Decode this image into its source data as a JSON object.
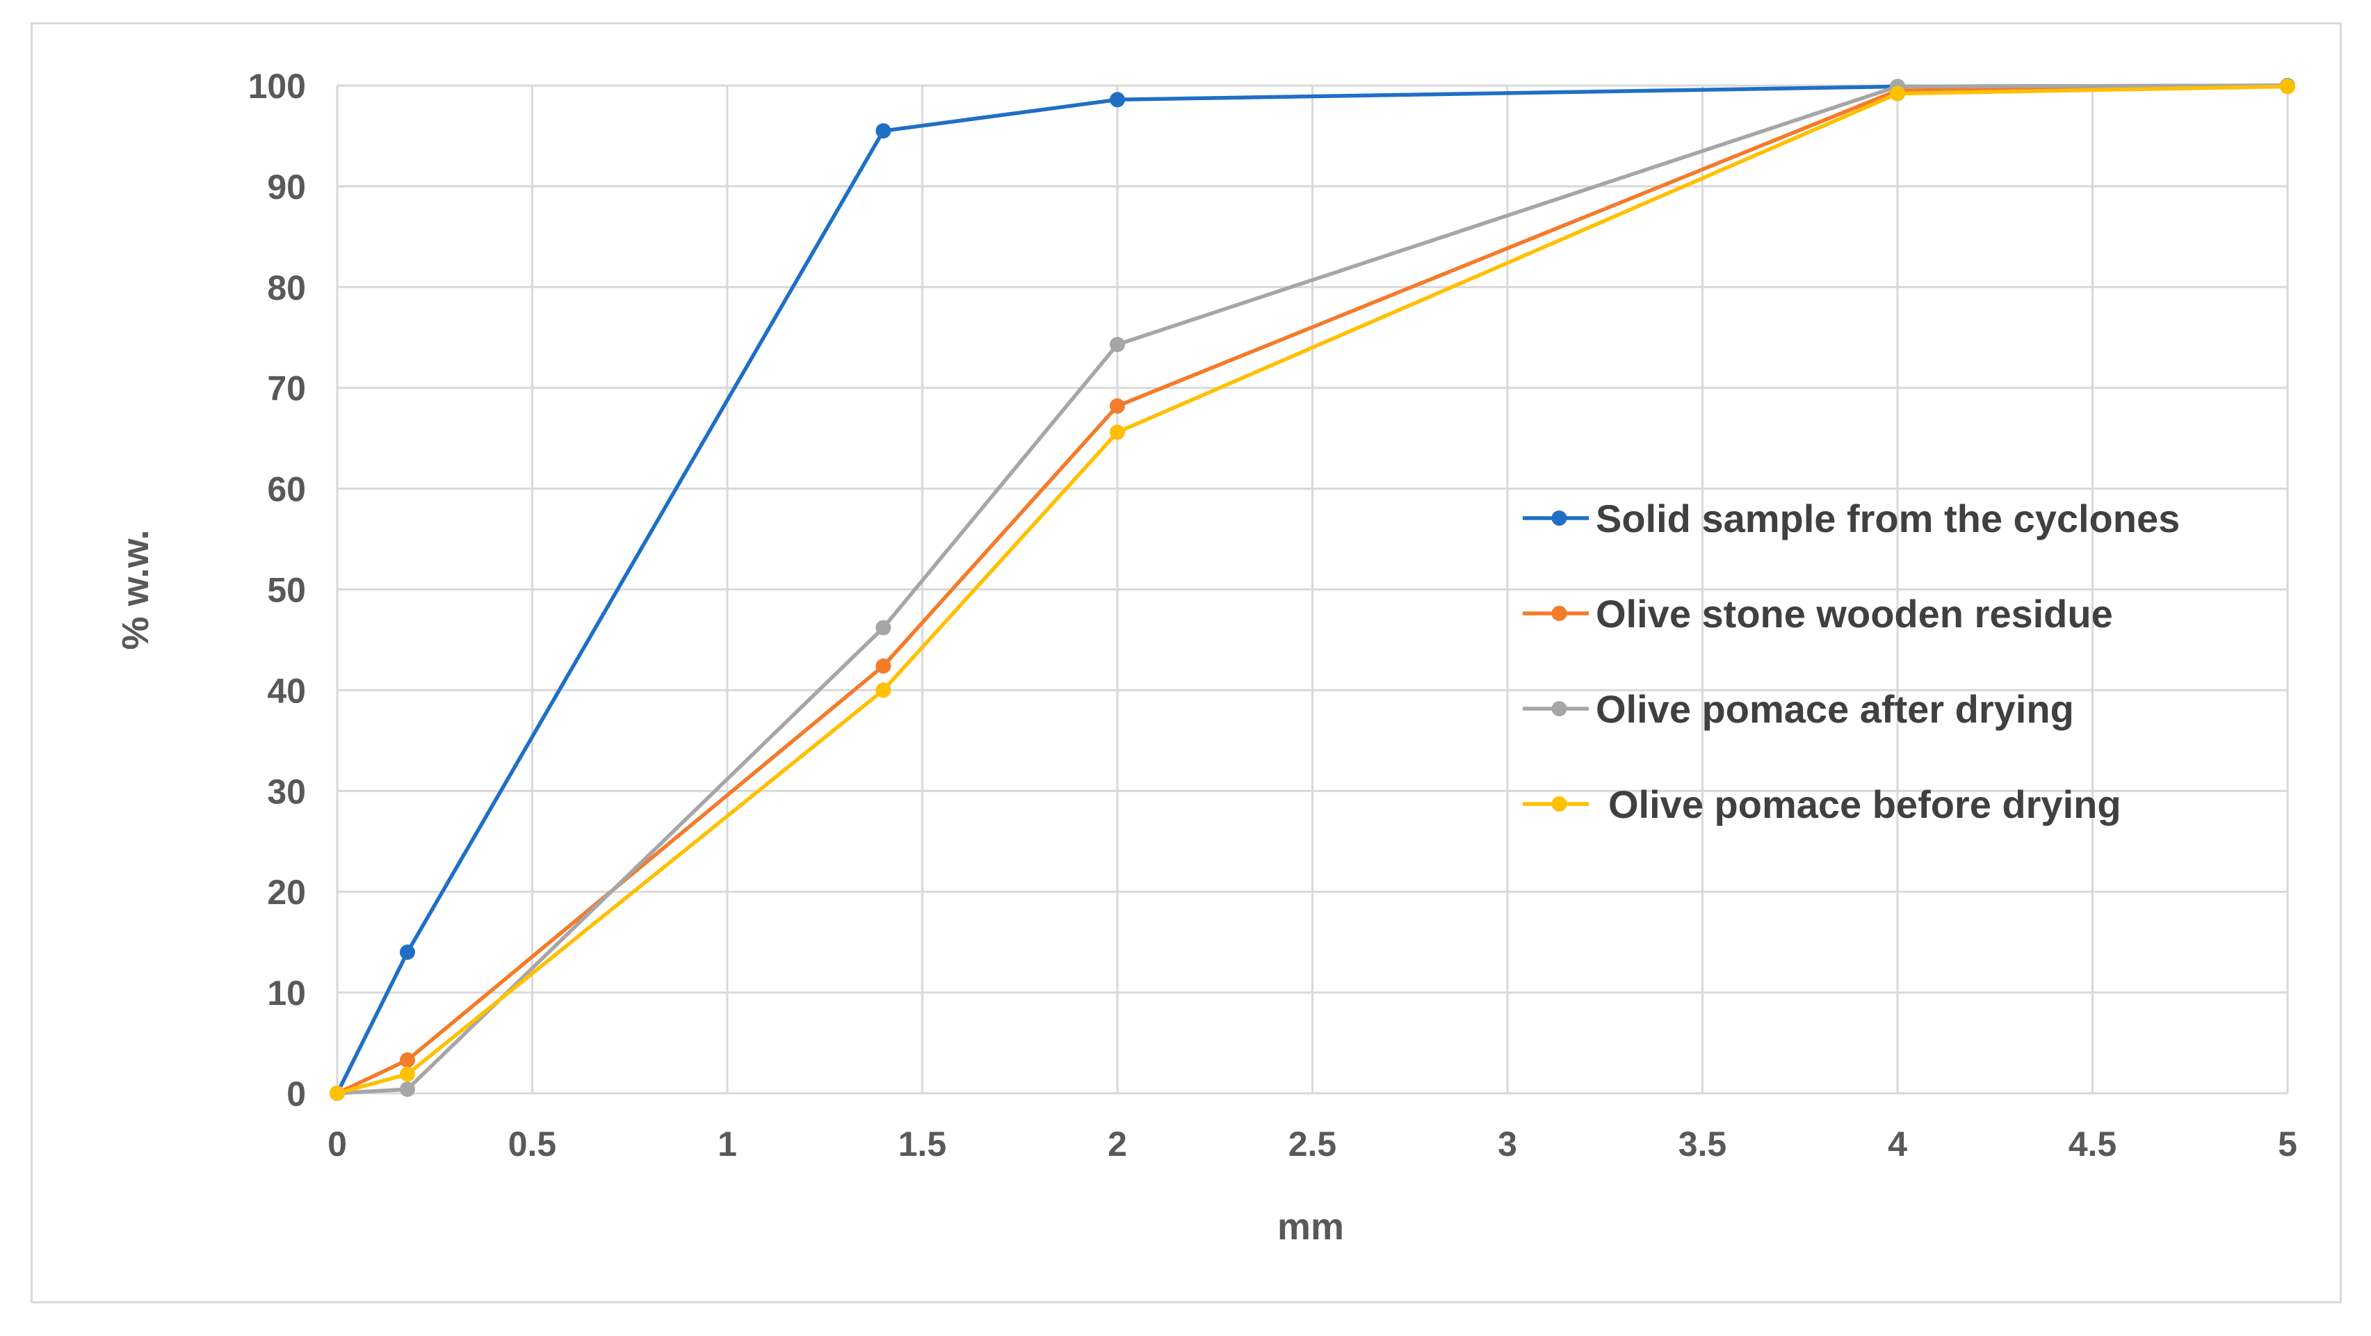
{
  "chart_data": {
    "type": "line",
    "title": "",
    "xlabel": "mm",
    "ylabel": "% w.w.",
    "xlim": [
      0,
      5
    ],
    "ylim": [
      0,
      100
    ],
    "x_ticks": [
      "0",
      "0.5",
      "1",
      "1.5",
      "2",
      "2.5",
      "3",
      "3.5",
      "4",
      "4.5",
      "5"
    ],
    "y_ticks": [
      "0",
      "10",
      "20",
      "30",
      "40",
      "50",
      "60",
      "70",
      "80",
      "90",
      "100"
    ],
    "grid": true,
    "legend_position": "center-right",
    "series": [
      {
        "name": "Solid sample from the cyclones",
        "color": "#1f6fc5",
        "x": [
          0,
          0.18,
          1.4,
          2,
          4,
          5
        ],
        "y": [
          0,
          14,
          95.5,
          98.6,
          99.9,
          100
        ]
      },
      {
        "name": "Olive stone wooden residue",
        "color": "#f47b2a",
        "x": [
          0,
          0.18,
          1.4,
          2,
          4,
          5
        ],
        "y": [
          0,
          3.3,
          42.4,
          68.2,
          99.5,
          100
        ]
      },
      {
        "name": "Olive pomace after drying",
        "color": "#a6a6a6",
        "x": [
          0,
          0.18,
          1.4,
          2,
          4,
          5
        ],
        "y": [
          0,
          0.4,
          46.2,
          74.3,
          99.9,
          100
        ]
      },
      {
        "name": "Olive pomace before drying",
        "color": "#ffc000",
        "x": [
          0,
          0.18,
          1.4,
          2,
          4,
          5
        ],
        "y": [
          0,
          1.9,
          40,
          65.6,
          99.2,
          99.9
        ]
      }
    ]
  }
}
